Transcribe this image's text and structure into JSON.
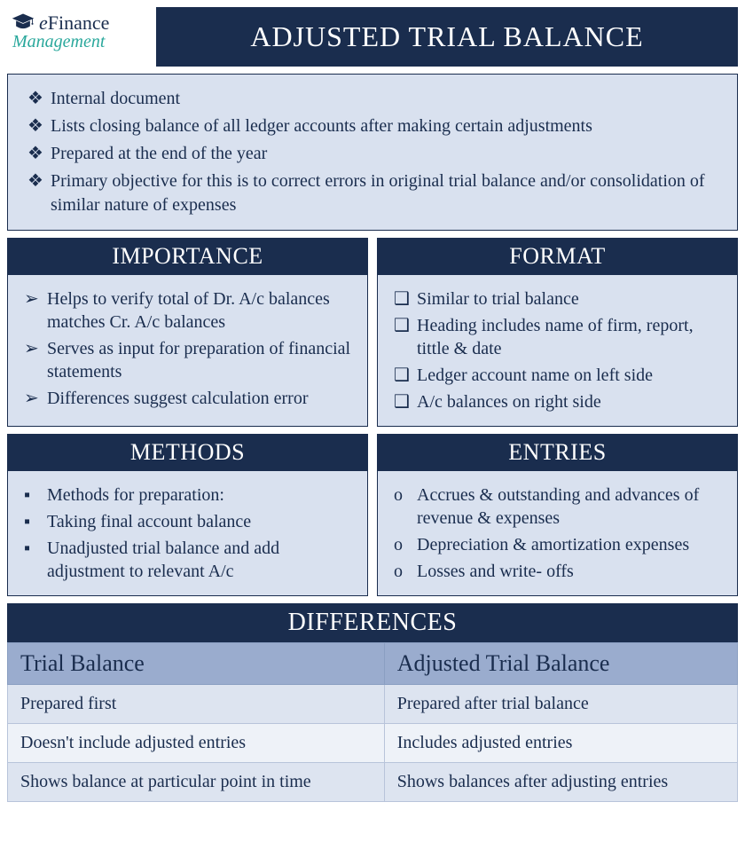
{
  "logo": {
    "line1_prefix": "e",
    "line1": "Finance",
    "line2": "Management"
  },
  "title": "ADJUSTED TRIAL BALANCE",
  "intro": {
    "bullet": "❖",
    "items": [
      "Internal document",
      "Lists closing balance of all ledger accounts after making certain adjustments",
      "Prepared at the end of the year",
      "Primary objective for this is to correct errors in original trial balance and/or consolidation of similar nature of expenses"
    ]
  },
  "sections": {
    "importance": {
      "heading": "IMPORTANCE",
      "bullet": "➢",
      "items": [
        "Helps to verify total of Dr. A/c balances matches Cr. A/c balances",
        "Serves as input for preparation of financial statements",
        "Differences suggest calculation error"
      ]
    },
    "format": {
      "heading": "FORMAT",
      "bullet": "❑",
      "items": [
        "Similar to trial balance",
        "Heading includes name of firm, report, tittle & date",
        "Ledger account name on left side",
        "A/c balances on right side"
      ]
    },
    "methods": {
      "heading": "METHODS",
      "bullet": "▪",
      "items": [
        "Methods for preparation:",
        "Taking final account balance",
        "Unadjusted trial balance and add adjustment to relevant A/c"
      ]
    },
    "entries": {
      "heading": "ENTRIES",
      "bullet": "o",
      "items": [
        "Accrues & outstanding and advances of revenue & expenses",
        "Depreciation & amortization expenses",
        "Losses and write- offs"
      ]
    }
  },
  "differences": {
    "heading": "DIFFERENCES",
    "columns": [
      "Trial Balance",
      "Adjusted Trial Balance"
    ],
    "rows": [
      [
        "Prepared first",
        "Prepared after trial balance"
      ],
      [
        "Doesn't include adjusted entries",
        "Includes adjusted entries"
      ],
      [
        "Shows balance at particular point in time",
        "Shows balances after adjusting entries"
      ]
    ]
  },
  "colors": {
    "dark": "#1a2d4e",
    "light": "#d9e1ef",
    "th_bg": "#9aacce",
    "row_alt1": "#dde4f0",
    "row_alt2": "#eef2f8",
    "teal": "#2aa89c"
  }
}
